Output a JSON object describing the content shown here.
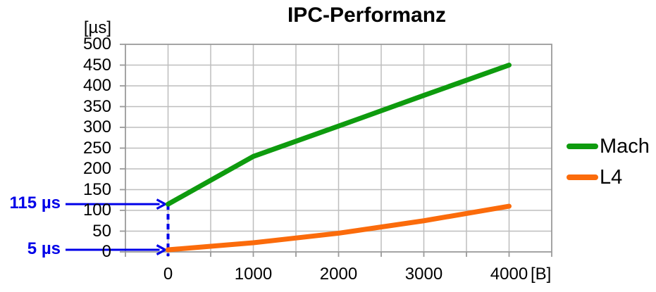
{
  "chart_data": {
    "type": "line",
    "title": "IPC-Performanz",
    "y_unit_label": "[µs]",
    "x_unit_label": "[B]",
    "x": [
      0,
      1000,
      2000,
      3000,
      4000
    ],
    "x_tick_labels": [
      "0",
      "1000",
      "2000",
      "3000",
      "4000"
    ],
    "y_ticks": [
      0,
      50,
      100,
      150,
      200,
      250,
      300,
      350,
      400,
      450,
      500
    ],
    "xlim": [
      -500,
      4500
    ],
    "ylim": [
      0,
      500
    ],
    "x_grid_step": 500,
    "y_grid_step": 50,
    "grid": true,
    "legend_position": "right",
    "series": [
      {
        "name": "Mach",
        "color": "#0E9B0E",
        "values": [
          115,
          230,
          303,
          377,
          450
        ]
      },
      {
        "name": "L4",
        "color": "#FB6B0B",
        "values": [
          5,
          22,
          45,
          75,
          110
        ]
      }
    ],
    "annotations": [
      {
        "label": "115 µs",
        "value": 115,
        "x": 0
      },
      {
        "label": "5 µs",
        "value": 5,
        "x": 0
      }
    ],
    "annotation_color": "#0000E8",
    "grid_color": "#BEBEBE",
    "axis_color": "#9A9A9A"
  }
}
